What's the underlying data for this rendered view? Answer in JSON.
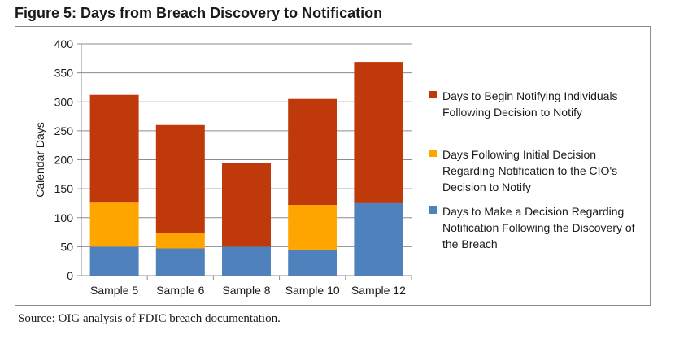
{
  "figure": {
    "title": "Figure 5: Days from Breach Discovery to Notification",
    "source": "Source: OIG analysis of FDIC breach documentation."
  },
  "chart_data": {
    "type": "bar",
    "stacked": true,
    "categories": [
      "Sample 5",
      "Sample 6",
      "Sample 8",
      "Sample 10",
      "Sample 12"
    ],
    "series": [
      {
        "name": "Days to Make a Decision Regarding Notification Following the Discovery of the Breach",
        "color": "#4f81bd",
        "values": [
          50,
          47,
          50,
          45,
          125
        ]
      },
      {
        "name": "Days Following Initial Decision Regarding Notification to the CIO's Decision to Notify",
        "color": "#ffa500",
        "values": [
          76,
          26,
          0,
          77,
          0
        ]
      },
      {
        "name": "Days to Begin Notifying Individuals Following Decision to Notify",
        "color": "#c0390b",
        "values": [
          186,
          187,
          145,
          183,
          244
        ]
      }
    ],
    "legend_order": [
      2,
      1,
      0
    ],
    "ylabel": "Calendar Days",
    "xlabel": "",
    "ylim": [
      0,
      400
    ],
    "yticks": [
      0,
      50,
      100,
      150,
      200,
      250,
      300,
      350,
      400
    ],
    "grid": true,
    "legend_position": "right"
  }
}
